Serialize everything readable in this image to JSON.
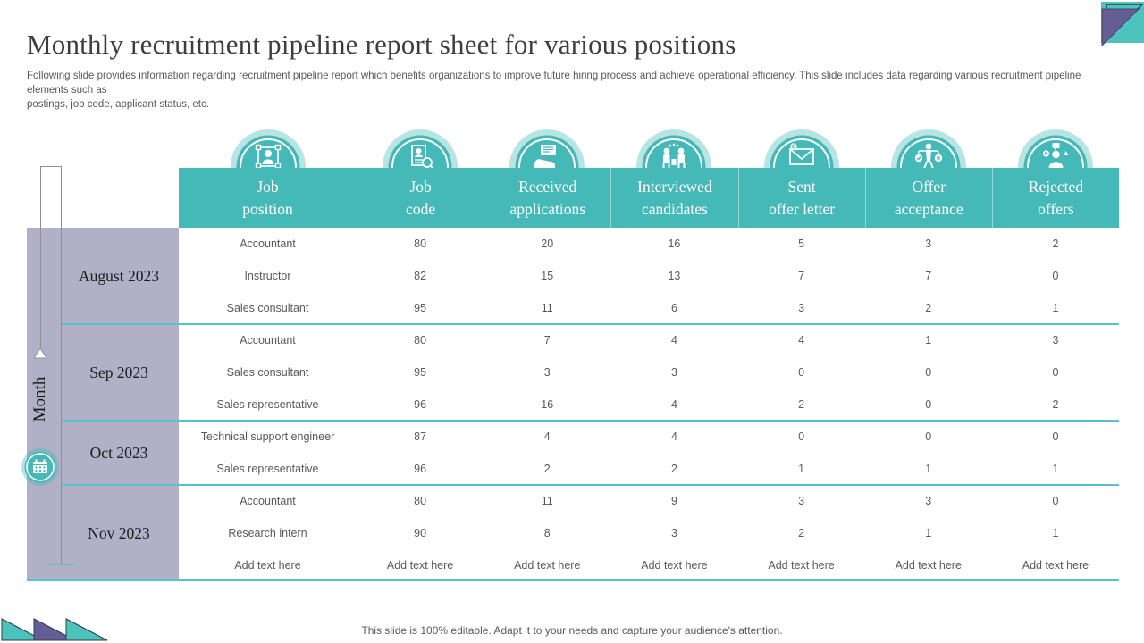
{
  "slide": {
    "title": "Monthly recruitment pipeline report sheet for various positions",
    "subtitle": "Following slide provides information regarding recruitment pipeline report which benefits organizations to improve future hiring process and achieve operational efficiency. This slide includes data regarding various recruitment pipeline elements such as\npostings, job code, applicant status, etc.",
    "footer": "This slide is 100% editable. Adapt it to your needs and capture your audience's attention."
  },
  "colors": {
    "teal": "#45b8b8",
    "line_teal": "#58c2ca",
    "lavender": "#b2b0c6",
    "purple": "#675d96",
    "decor_teal": "#4cc3bd",
    "outline_dark": "#2e3b4e",
    "text_dark": "#3d3d3d",
    "text_gray": "#595959"
  },
  "table": {
    "axis_label": "Month",
    "columns": [
      {
        "label": "Job\nposition",
        "icon": "people-network-icon"
      },
      {
        "label": "Job\ncode",
        "icon": "document-search-icon"
      },
      {
        "label": "Received\napplications",
        "icon": "hand-document-icon"
      },
      {
        "label": "Interviewed\ncandidates",
        "icon": "interview-icon"
      },
      {
        "label": "Sent\noffer letter",
        "icon": "envelope-icon"
      },
      {
        "label": "Offer\nacceptance",
        "icon": "scales-icon"
      },
      {
        "label": "Rejected\noffers",
        "icon": "rejected-person-icon"
      }
    ],
    "groups": [
      {
        "month": "August 2023",
        "rows": [
          [
            "Accountant",
            "80",
            "20",
            "16",
            "5",
            "3",
            "2"
          ],
          [
            "Instructor",
            "82",
            "15",
            "13",
            "7",
            "7",
            "0"
          ],
          [
            "Sales consultant",
            "95",
            "11",
            "6",
            "3",
            "2",
            "1"
          ]
        ]
      },
      {
        "month": "Sep 2023",
        "rows": [
          [
            "Accountant",
            "80",
            "7",
            "4",
            "4",
            "1",
            "3"
          ],
          [
            "Sales consultant",
            "95",
            "3",
            "3",
            "0",
            "0",
            "0"
          ],
          [
            "Sales representative",
            "96",
            "16",
            "4",
            "2",
            "0",
            "2"
          ]
        ]
      },
      {
        "month": "Oct 2023",
        "rows": [
          [
            "Technical support engineer",
            "87",
            "4",
            "4",
            "0",
            "0",
            "0"
          ],
          [
            "Sales representative",
            "96",
            "2",
            "2",
            "1",
            "1",
            "1"
          ]
        ]
      },
      {
        "month": "Nov 2023",
        "rows": [
          [
            "Accountant",
            "80",
            "11",
            "9",
            "3",
            "3",
            "0"
          ],
          [
            "Research intern",
            "90",
            "8",
            "3",
            "2",
            "1",
            "1"
          ],
          [
            "Add text here",
            "Add text here",
            "Add text here",
            "Add text here",
            "Add text here",
            "Add text here",
            "Add text here"
          ]
        ]
      }
    ]
  }
}
